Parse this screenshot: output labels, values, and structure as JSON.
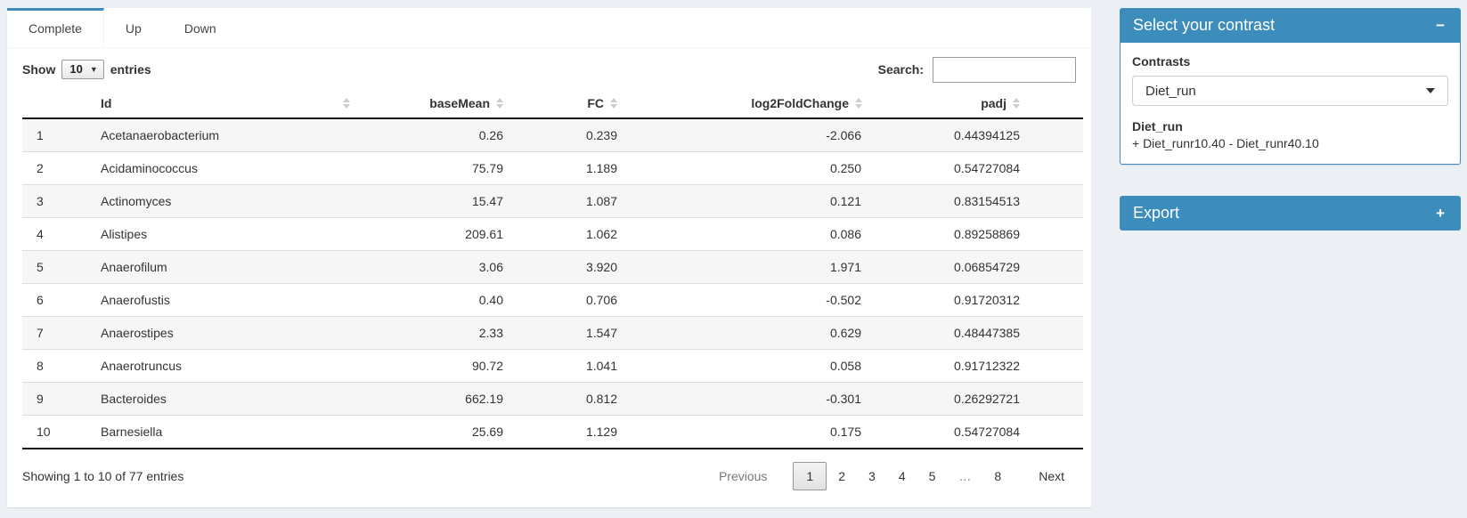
{
  "colors": {
    "primary": "#3c8dbc",
    "page_bg": "#ecf0f5"
  },
  "tabs": {
    "items": [
      {
        "label": "Complete",
        "active": true
      },
      {
        "label": "Up",
        "active": false
      },
      {
        "label": "Down",
        "active": false
      }
    ]
  },
  "length_control": {
    "prefix": "Show",
    "value": "10",
    "suffix": "entries"
  },
  "search": {
    "label": "Search:",
    "value": ""
  },
  "table": {
    "columns": [
      "Id",
      "baseMean",
      "FC",
      "log2FoldChange",
      "padj"
    ],
    "rows": [
      [
        "1",
        "Acetanaerobacterium",
        "0.26",
        "0.239",
        "-2.066",
        "0.44394125"
      ],
      [
        "2",
        "Acidaminococcus",
        "75.79",
        "1.189",
        "0.250",
        "0.54727084"
      ],
      [
        "3",
        "Actinomyces",
        "15.47",
        "1.087",
        "0.121",
        "0.83154513"
      ],
      [
        "4",
        "Alistipes",
        "209.61",
        "1.062",
        "0.086",
        "0.89258869"
      ],
      [
        "5",
        "Anaerofilum",
        "3.06",
        "3.920",
        "1.971",
        "0.06854729"
      ],
      [
        "6",
        "Anaerofustis",
        "0.40",
        "0.706",
        "-0.502",
        "0.91720312"
      ],
      [
        "7",
        "Anaerostipes",
        "2.33",
        "1.547",
        "0.629",
        "0.48447385"
      ],
      [
        "8",
        "Anaerotruncus",
        "90.72",
        "1.041",
        "0.058",
        "0.91712322"
      ],
      [
        "9",
        "Bacteroides",
        "662.19",
        "0.812",
        "-0.301",
        "0.26292721"
      ],
      [
        "10",
        "Barnesiella",
        "25.69",
        "1.129",
        "0.175",
        "0.54727084"
      ]
    ]
  },
  "footer": {
    "info": "Showing 1 to 10 of 77 entries",
    "previous": "Previous",
    "next": "Next",
    "pages": [
      "1",
      "2",
      "3",
      "4",
      "5",
      "…",
      "8"
    ],
    "active_page": "1",
    "ellipsis": "…"
  },
  "contrast_panel": {
    "title": "Select your contrast",
    "collapse_icon": "−",
    "label": "Contrasts",
    "selected": "Diet_run",
    "detail_title": "Diet_run",
    "detail_text": "+ Diet_runr10.40 - Diet_runr40.10"
  },
  "export_panel": {
    "title": "Export",
    "expand_icon": "+"
  }
}
